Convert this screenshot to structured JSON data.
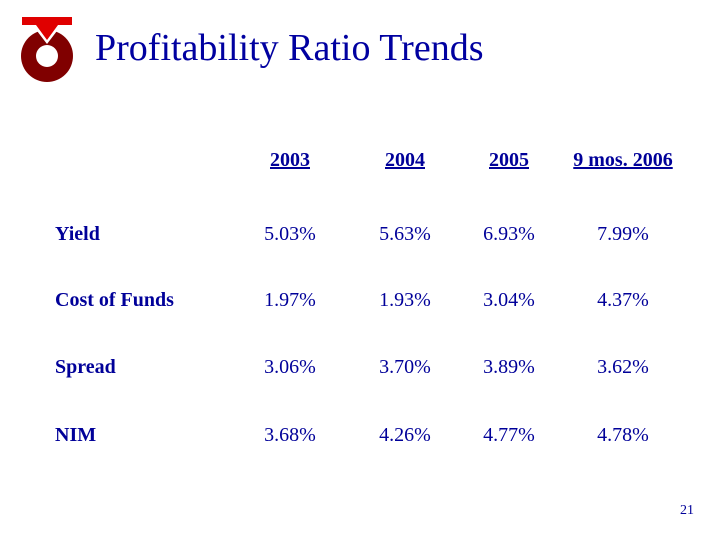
{
  "slide": {
    "title": "Profitability Ratio Trends",
    "page_number": "21"
  },
  "table": {
    "columns": [
      "2003",
      "2004",
      "2005",
      "9 mos. 2006"
    ],
    "rows": [
      {
        "label": "Yield",
        "values": [
          "5.03%",
          "5.63%",
          "6.93%",
          "7.99%"
        ]
      },
      {
        "label": "Cost of Funds",
        "values": [
          "1.97%",
          "1.93%",
          "3.04%",
          "4.37%"
        ]
      },
      {
        "label": "Spread",
        "values": [
          "3.06%",
          "3.70%",
          "3.89%",
          "3.62%"
        ]
      },
      {
        "label": "NIM",
        "values": [
          "3.68%",
          "4.26%",
          "4.77%",
          "4.78%"
        ]
      }
    ]
  },
  "colors": {
    "text": "#000099",
    "logo_arrow": "#e00000",
    "logo_ring": "#800000"
  }
}
